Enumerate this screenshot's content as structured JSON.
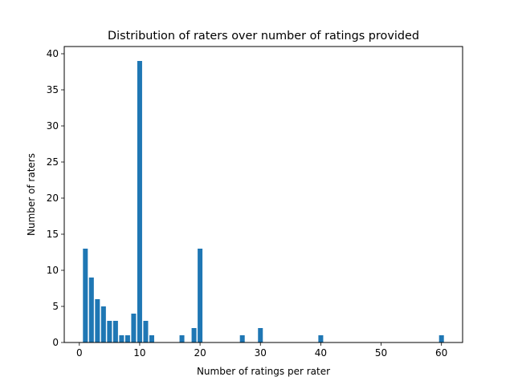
{
  "chart_data": {
    "type": "bar",
    "title": "Distribution of raters over number of ratings provided",
    "xlabel": "Number of ratings per rater",
    "ylabel": "Number of raters",
    "xlim": [
      -2.5,
      63.5
    ],
    "ylim": [
      0,
      41
    ],
    "grid": false,
    "bar_color": "#1f77b4",
    "bar_width": 0.8,
    "xticks": [
      0,
      10,
      20,
      30,
      40,
      50,
      60
    ],
    "yticks": [
      0,
      5,
      10,
      15,
      20,
      25,
      30,
      35,
      40
    ],
    "x": [
      1,
      2,
      3,
      4,
      5,
      6,
      7,
      8,
      9,
      10,
      11,
      12,
      17,
      19,
      20,
      27,
      30,
      40,
      60
    ],
    "values": [
      13,
      9,
      6,
      5,
      3,
      3,
      1,
      1,
      4,
      39,
      3,
      1,
      1,
      2,
      13,
      1,
      2,
      1,
      1
    ]
  }
}
